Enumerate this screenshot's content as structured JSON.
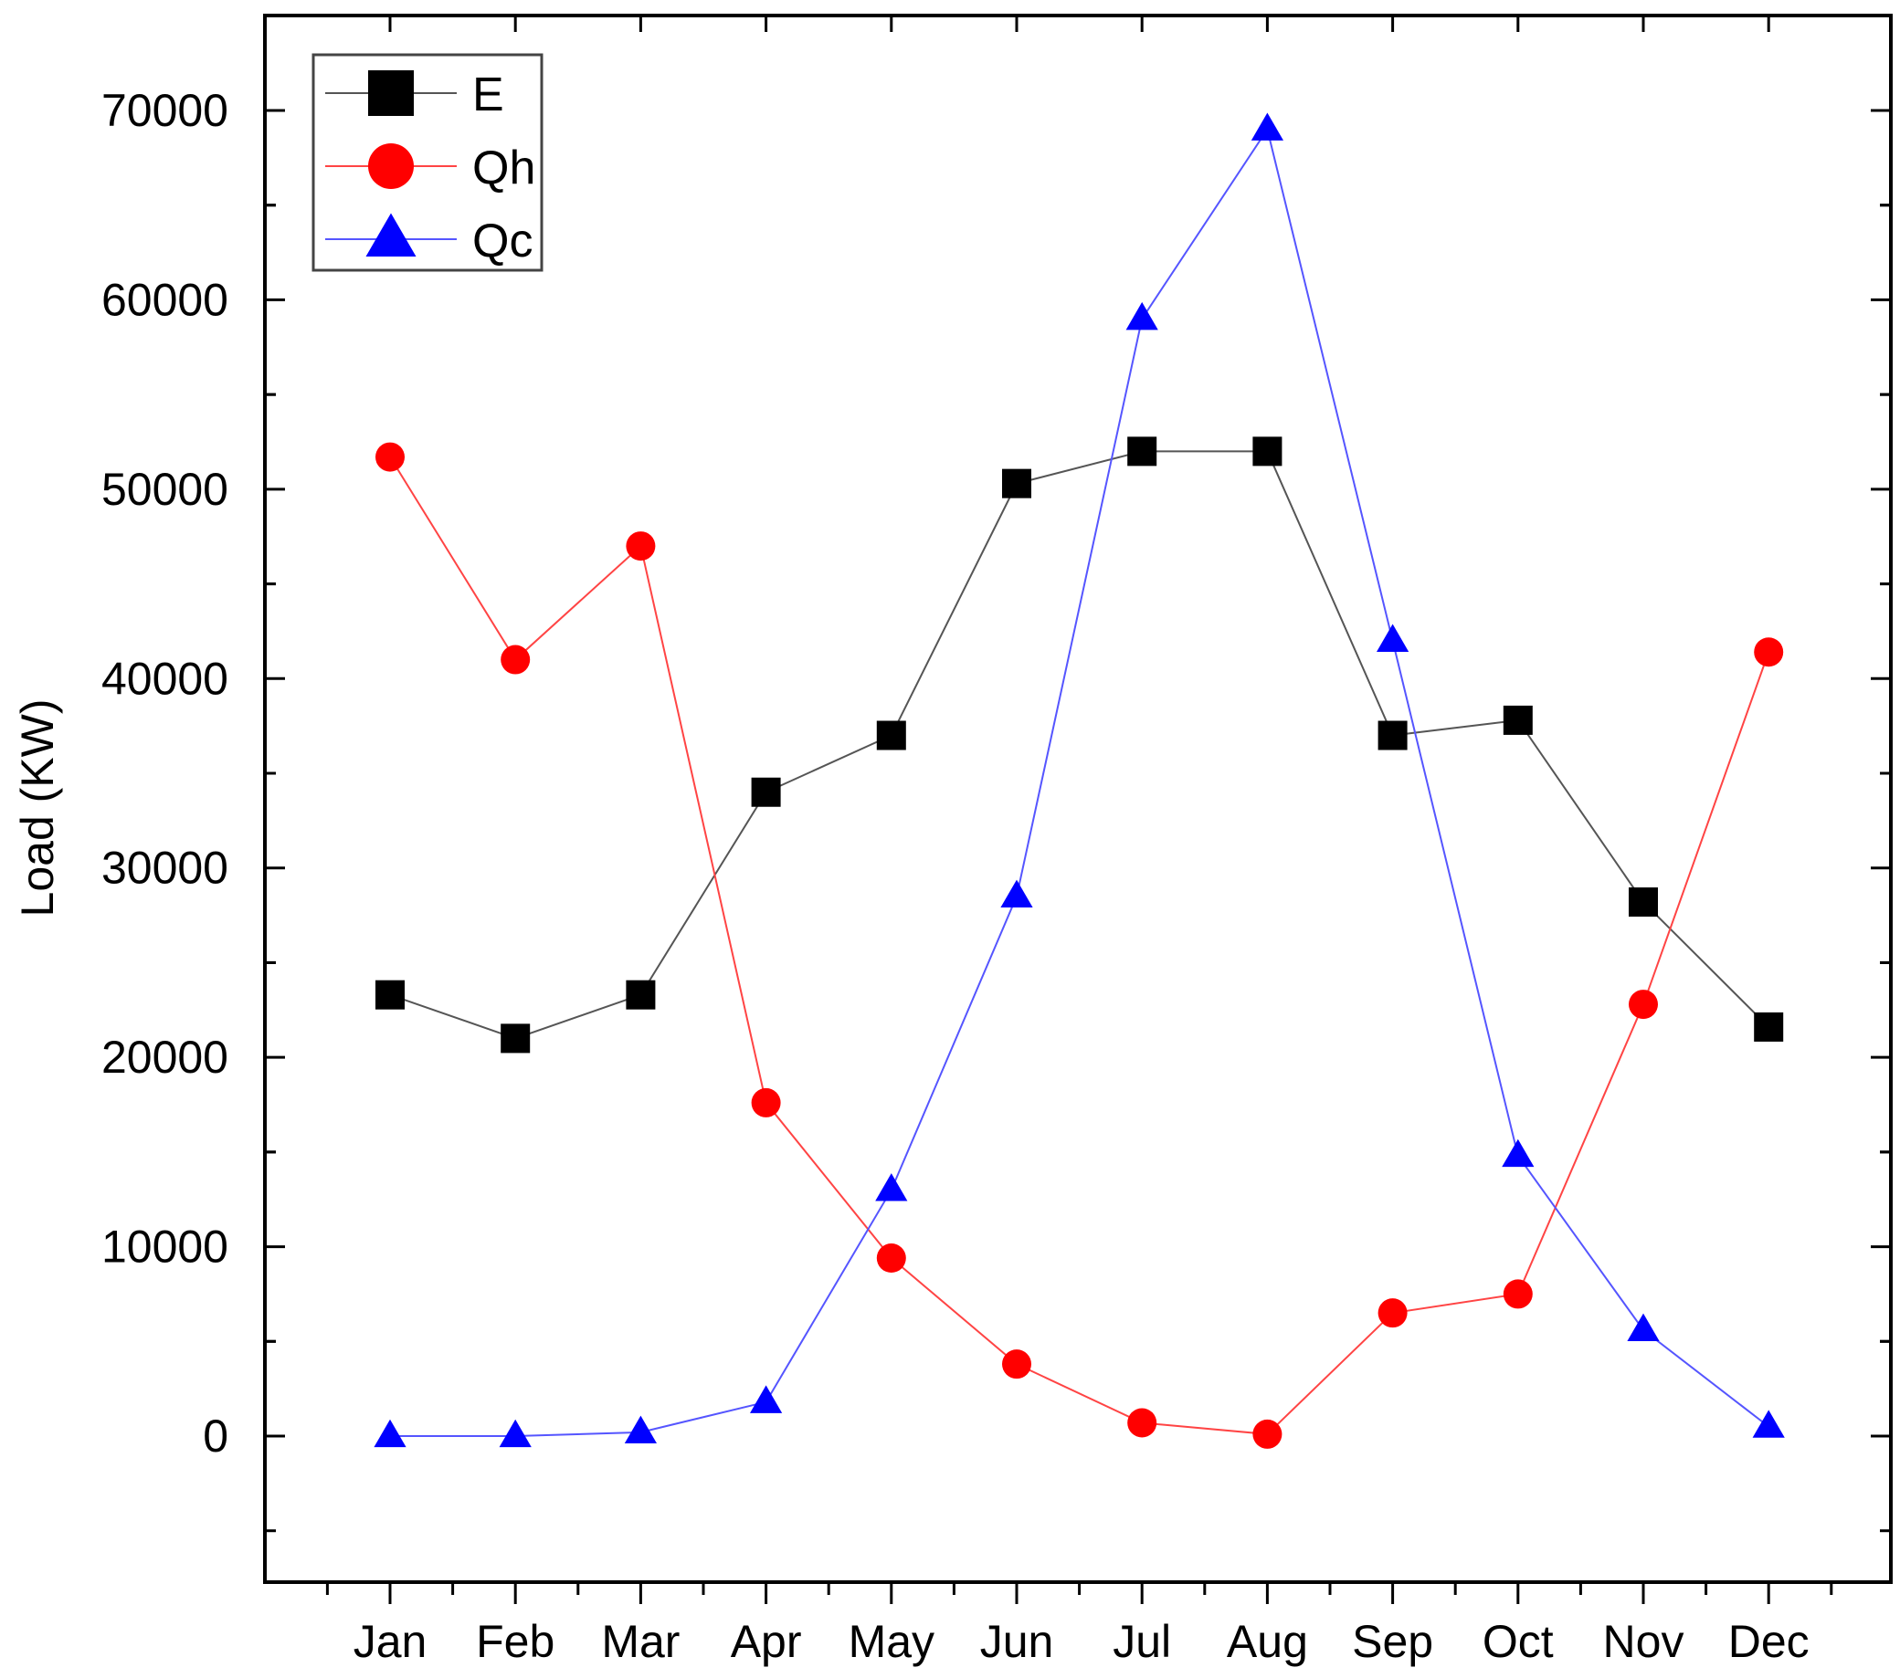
{
  "chart_data": {
    "type": "line",
    "title": "",
    "xlabel": "",
    "ylabel": "Load (KW)",
    "categories": [
      "Jan",
      "Feb",
      "Mar",
      "Apr",
      "May",
      "Jun",
      "Jul",
      "Aug",
      "Sep",
      "Oct",
      "Nov",
      "Dec"
    ],
    "ylim": [
      -7500,
      75000
    ],
    "yticks": [
      0,
      10000,
      20000,
      30000,
      40000,
      50000,
      60000,
      70000
    ],
    "ytick_labels": [
      "0",
      "10000",
      "20000",
      "30000",
      "40000",
      "50000",
      "60000",
      "70000"
    ],
    "grid": false,
    "legend_position": "top-left",
    "series": [
      {
        "name": "E",
        "marker": "square",
        "color": "#000000",
        "line_color": "#555555",
        "values": [
          23300,
          21000,
          23300,
          34000,
          37000,
          50300,
          52000,
          52000,
          37000,
          37800,
          28200,
          21600
        ]
      },
      {
        "name": "Qh",
        "marker": "circle",
        "color": "#ff0000",
        "line_color": "#ff4444",
        "values": [
          51700,
          41000,
          47000,
          17600,
          9400,
          3800,
          700,
          100,
          6500,
          7500,
          22800,
          41400
        ]
      },
      {
        "name": "Qc",
        "marker": "triangle",
        "color": "#0000ff",
        "line_color": "#5555ff",
        "values": [
          0,
          0,
          200,
          1800,
          13000,
          28500,
          59000,
          69000,
          42000,
          14800,
          5600,
          500
        ]
      }
    ]
  }
}
